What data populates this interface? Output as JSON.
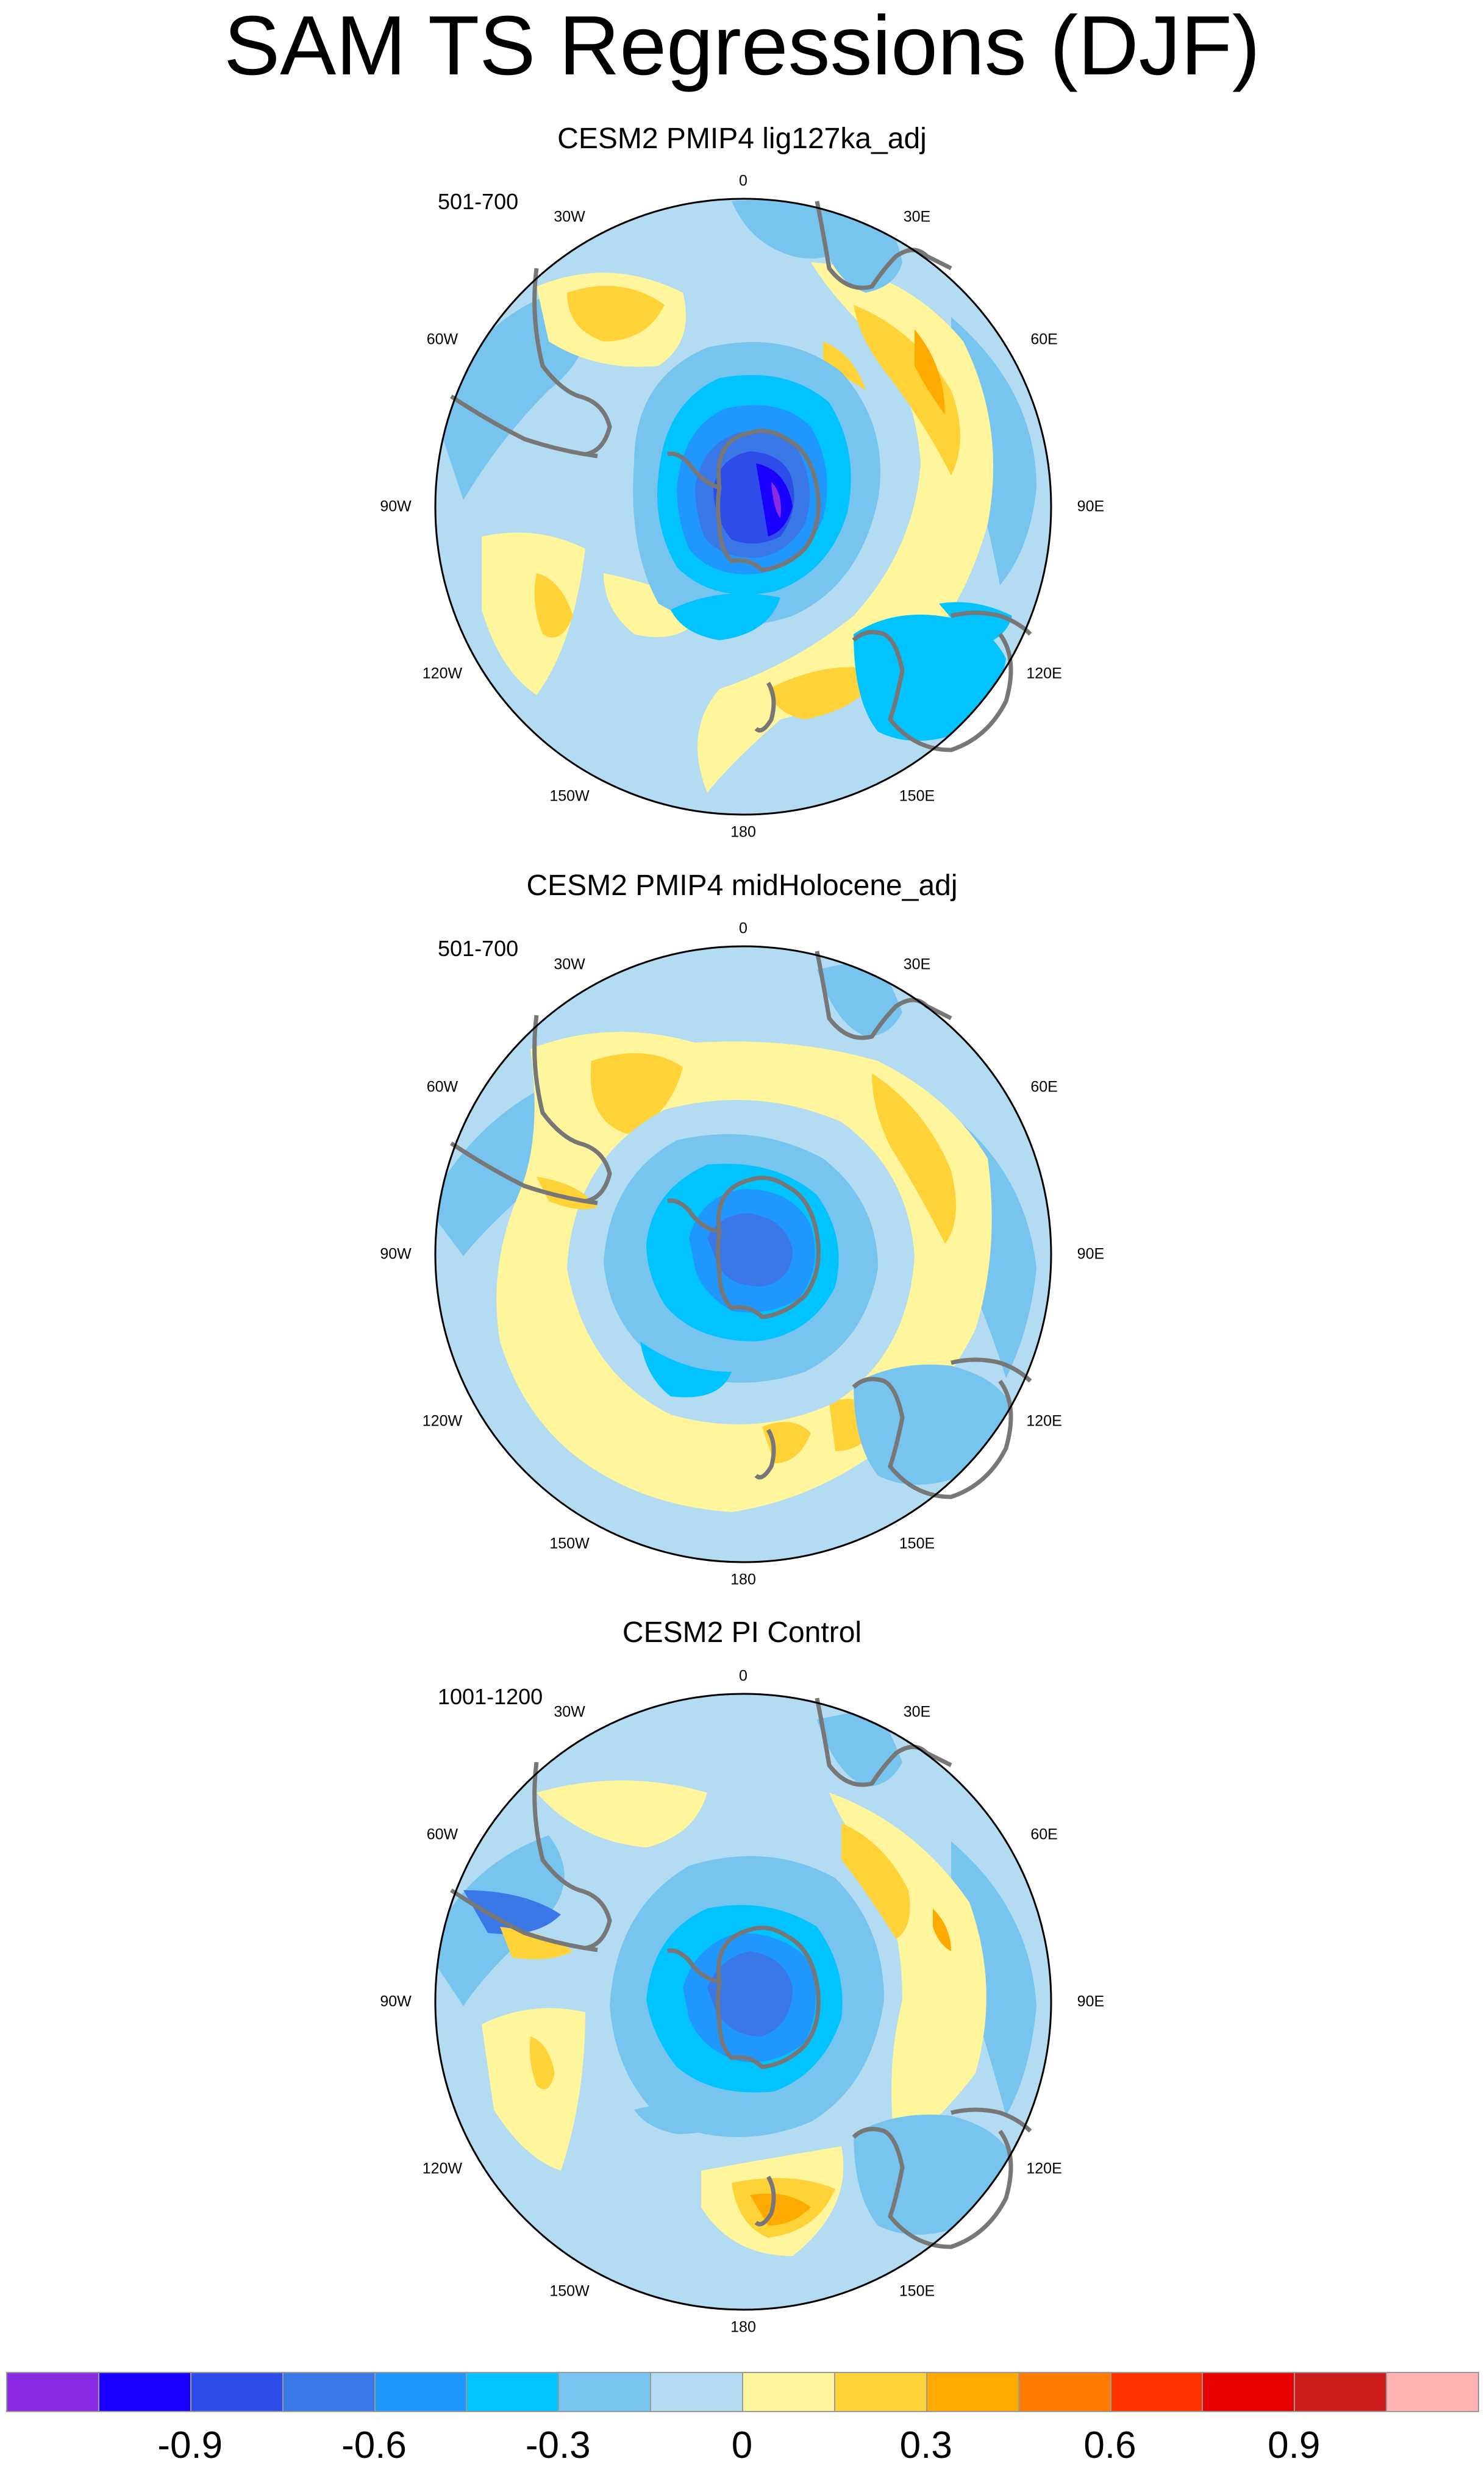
{
  "figure": {
    "title": "SAM TS Regressions (DJF)"
  },
  "panels": [
    {
      "title": "CESM2 PMIP4 lig127ka_adj",
      "period": "501-700"
    },
    {
      "title": "CESM2 PMIP4 midHolocene_adj",
      "period": "501-700"
    },
    {
      "title": "CESM2 PI Control",
      "period": "1001-1200"
    }
  ],
  "longitude_labels": [
    "0",
    "30E",
    "60E",
    "90E",
    "120E",
    "150E",
    "180",
    "150W",
    "120W",
    "90W",
    "60W",
    "30W"
  ],
  "colorbar": {
    "colors": [
      "#8a2be2",
      "#1a00ff",
      "#2e4de8",
      "#3a78e8",
      "#1f97ff",
      "#00c3ff",
      "#77c4ee",
      "#b3dcf2",
      "#fff59c",
      "#ffd338",
      "#ffaa00",
      "#ff7b00",
      "#ff3300",
      "#e60000",
      "#cc1c1c",
      "#ffb3b3"
    ],
    "labels": [
      "-0.9",
      "-0.6",
      "-0.3",
      "0",
      "0.3",
      "0.6",
      "0.9"
    ]
  }
}
